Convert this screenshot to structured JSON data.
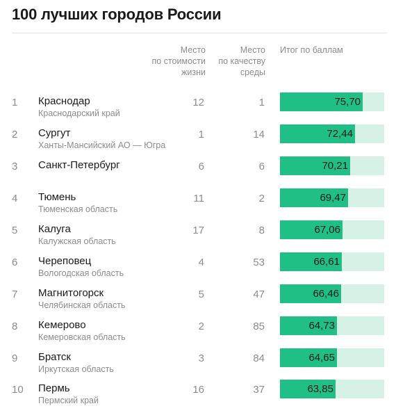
{
  "title": "100 лучших городов России",
  "headers": {
    "cost": [
      "Место",
      "по стоимости",
      "жизни"
    ],
    "environment": [
      "Место",
      "по качеству",
      "среды"
    ],
    "score": [
      "Итог по баллам"
    ]
  },
  "colors": {
    "bar": "#1fbf85",
    "bar_track": "#d6f1e5"
  },
  "chart_data": {
    "type": "bar",
    "title": "100 лучших городов России",
    "ylim": [
      0,
      100
    ],
    "categories": [
      "Краснодар",
      "Сургут",
      "Санкт-Петербург",
      "Тюмень",
      "Калуга",
      "Череповец",
      "Магнитогорск",
      "Кемерово",
      "Братск",
      "Пермь"
    ],
    "rows": [
      {
        "rank": "1",
        "city": "Краснодар",
        "region": "Краснодарский край",
        "cost_rank": "12",
        "env_rank": "1",
        "score_label": "75,70",
        "score": 75.7
      },
      {
        "rank": "2",
        "city": "Сургут",
        "region": "Ханты-Мансийский АО — Югра",
        "cost_rank": "1",
        "env_rank": "14",
        "score_label": "72,44",
        "score": 72.44
      },
      {
        "rank": "3",
        "city": "Санкт-Петербург",
        "region": "",
        "cost_rank": "6",
        "env_rank": "6",
        "score_label": "70,21",
        "score": 70.21
      },
      {
        "rank": "4",
        "city": "Тюмень",
        "region": "Тюменская область",
        "cost_rank": "11",
        "env_rank": "2",
        "score_label": "69,47",
        "score": 69.47
      },
      {
        "rank": "5",
        "city": "Калуга",
        "region": "Калужская область",
        "cost_rank": "17",
        "env_rank": "8",
        "score_label": "67,06",
        "score": 67.06
      },
      {
        "rank": "6",
        "city": "Череповец",
        "region": "Вологодская область",
        "cost_rank": "4",
        "env_rank": "53",
        "score_label": "66,61",
        "score": 66.61
      },
      {
        "rank": "7",
        "city": "Магнитогорск",
        "region": "Челябинская область",
        "cost_rank": "5",
        "env_rank": "47",
        "score_label": "66,46",
        "score": 66.46
      },
      {
        "rank": "8",
        "city": "Кемерово",
        "region": "Кемеровская область",
        "cost_rank": "2",
        "env_rank": "85",
        "score_label": "64,73",
        "score": 64.73
      },
      {
        "rank": "9",
        "city": "Братск",
        "region": "Иркутская область",
        "cost_rank": "3",
        "env_rank": "84",
        "score_label": "64,65",
        "score": 64.65
      },
      {
        "rank": "10",
        "city": "Пермь",
        "region": "Пермский край",
        "cost_rank": "16",
        "env_rank": "37",
        "score_label": "63,85",
        "score": 63.85
      }
    ]
  }
}
